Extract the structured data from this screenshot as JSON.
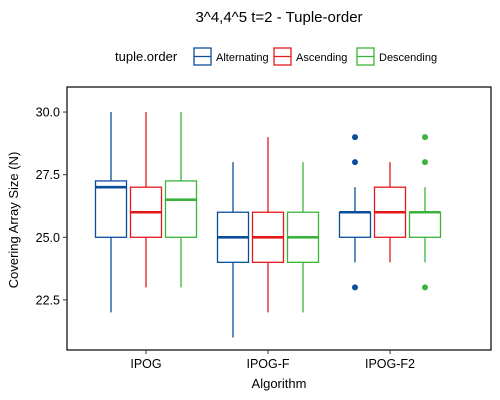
{
  "chart_data": {
    "type": "boxplot",
    "title": "3^4,4^5 t=2 - Tuple-order",
    "xlabel": "Algorithm",
    "ylabel": "Covering Array Size (N)",
    "ylim": [
      20.5,
      31.0
    ],
    "yticks": [
      22.5,
      25.0,
      27.5,
      30.0
    ],
    "ytick_labels": [
      "22.5",
      "25.0",
      "27.5",
      "30.0"
    ],
    "grid": false,
    "legend": {
      "title": "tuple.order",
      "position": "top",
      "entries": [
        "Alternating",
        "Ascending",
        "Descending"
      ]
    },
    "categories": [
      "IPOG",
      "IPOG-F",
      "IPOG-F2"
    ],
    "series": [
      {
        "name": "Alternating",
        "color": "#0a4e9b",
        "boxes": [
          {
            "whisker_low": 22,
            "q1": 25,
            "median": 27,
            "q3": 27.25,
            "whisker_high": 30,
            "outliers": []
          },
          {
            "whisker_low": 21,
            "q1": 24,
            "median": 25,
            "q3": 26,
            "whisker_high": 28,
            "outliers": []
          },
          {
            "whisker_low": 24,
            "q1": 25,
            "median": 26,
            "q3": 26,
            "whisker_high": 27,
            "outliers": [
              23,
              28,
              29
            ]
          }
        ]
      },
      {
        "name": "Ascending",
        "color": "#e31a1c",
        "boxes": [
          {
            "whisker_low": 23,
            "q1": 25,
            "median": 26,
            "q3": 27,
            "whisker_high": 30,
            "outliers": []
          },
          {
            "whisker_low": 22,
            "q1": 24,
            "median": 25,
            "q3": 26,
            "whisker_high": 29,
            "outliers": []
          },
          {
            "whisker_low": 24,
            "q1": 25,
            "median": 26,
            "q3": 27,
            "whisker_high": 28,
            "outliers": []
          }
        ]
      },
      {
        "name": "Descending",
        "color": "#3bb33b",
        "boxes": [
          {
            "whisker_low": 23,
            "q1": 25,
            "median": 26.5,
            "q3": 27.25,
            "whisker_high": 30,
            "outliers": []
          },
          {
            "whisker_low": 22,
            "q1": 24,
            "median": 25,
            "q3": 26,
            "whisker_high": 28,
            "outliers": []
          },
          {
            "whisker_low": 24,
            "q1": 25,
            "median": 26,
            "q3": 26,
            "whisker_high": 27,
            "outliers": [
              23,
              28,
              29
            ]
          }
        ]
      }
    ]
  }
}
